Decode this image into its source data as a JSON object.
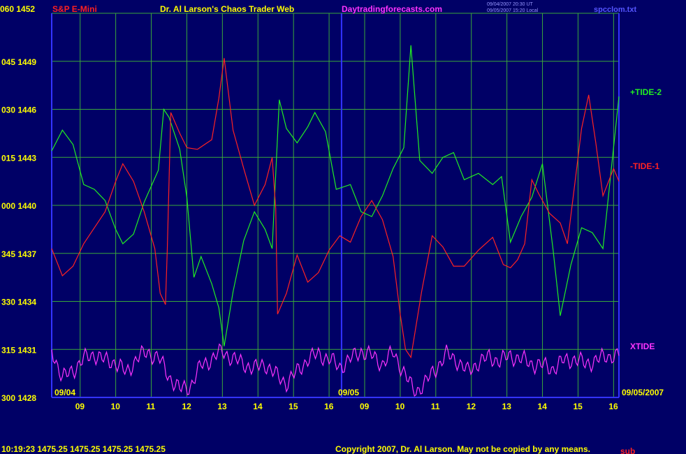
{
  "header": {
    "symbol": "S&P E-Mini",
    "title": "Dr. Al Larson's Chaos Trader Web",
    "site": "Daytradingforecasts.com",
    "meta_line1": "09/04/2007 20:30 UT",
    "meta_line2": "09/05/2007 15:20 Local",
    "file": "spcclom.txt"
  },
  "footer": {
    "quote": "10:19:23  1475.25 1475.25 1475.25 1475.25",
    "copyright": "Copyright 2007, Dr. Al Larson. May not be copied by any means.",
    "overlap": "sub"
  },
  "date_labels": {
    "start1": "09/04",
    "start2": "09/05",
    "end": "09/05/2007"
  },
  "colors": {
    "background": "#000066",
    "grid": "#3aa83a",
    "axis": "#3333ff",
    "green": "#22ee22",
    "red": "#ff2222",
    "magenta": "#ff33ff",
    "label": "#ffff00"
  },
  "chart_data": {
    "type": "line",
    "title": "S&P E-Mini",
    "y_left_labels": [
      "060",
      "045",
      "030",
      "015",
      "000",
      "345",
      "330",
      "315",
      "300"
    ],
    "y_right_labels": [
      "1452",
      "1449",
      "1446",
      "1443",
      "1440",
      "1437",
      "1434",
      "1431",
      "1428"
    ],
    "ylim": [
      1428,
      1452
    ],
    "x_ticks": [
      "09",
      "10",
      "11",
      "12",
      "13",
      "14",
      "15",
      "16",
      "09",
      "10",
      "11",
      "12",
      "13",
      "14",
      "15",
      "16"
    ],
    "x_range": [
      8.2,
      24.15
    ],
    "grid": true,
    "series": [
      {
        "name": "+TIDE-2",
        "color": "#22ee22",
        "points": [
          [
            8.2,
            1443.4
          ],
          [
            8.5,
            1444.7
          ],
          [
            8.8,
            1443.8
          ],
          [
            9.1,
            1441.3
          ],
          [
            9.4,
            1441
          ],
          [
            9.7,
            1440.3
          ],
          [
            10,
            1438.5
          ],
          [
            10.2,
            1437.6
          ],
          [
            10.5,
            1438.2
          ],
          [
            10.8,
            1440.2
          ],
          [
            11.2,
            1442.2
          ],
          [
            11.35,
            1446
          ],
          [
            11.5,
            1445.5
          ],
          [
            11.8,
            1443.5
          ],
          [
            12.0,
            1440.5
          ],
          [
            12.2,
            1435.5
          ],
          [
            12.4,
            1436.8
          ],
          [
            12.7,
            1435.1
          ],
          [
            12.9,
            1433.6
          ],
          [
            13.05,
            1431.2
          ],
          [
            13.3,
            1434.6
          ],
          [
            13.6,
            1437.8
          ],
          [
            13.9,
            1439.6
          ],
          [
            14.2,
            1438.5
          ],
          [
            14.4,
            1437.3
          ],
          [
            14.6,
            1446.6
          ],
          [
            14.8,
            1444.8
          ],
          [
            15.1,
            1443.9
          ],
          [
            15.4,
            1444.9
          ],
          [
            15.6,
            1445.8
          ],
          [
            15.9,
            1444.6
          ],
          [
            16.2,
            1441
          ],
          [
            16.6,
            1441.3
          ],
          [
            16.9,
            1439.6
          ],
          [
            17.2,
            1439.3
          ],
          [
            17.5,
            1440.6
          ],
          [
            17.8,
            1442.3
          ],
          [
            18.1,
            1443.6
          ],
          [
            18.3,
            1450
          ],
          [
            18.55,
            1442.8
          ],
          [
            18.9,
            1442
          ],
          [
            19.2,
            1443
          ],
          [
            19.5,
            1443.3
          ],
          [
            19.8,
            1441.6
          ],
          [
            20.2,
            1442
          ],
          [
            20.6,
            1441.3
          ],
          [
            20.85,
            1441.8
          ],
          [
            21.1,
            1437.7
          ],
          [
            21.4,
            1439.3
          ],
          [
            21.7,
            1440.5
          ],
          [
            22.0,
            1442.6
          ],
          [
            22.3,
            1437.2
          ],
          [
            22.5,
            1433.1
          ],
          [
            22.8,
            1436.3
          ],
          [
            23.1,
            1438.6
          ],
          [
            23.4,
            1438.3
          ],
          [
            23.7,
            1437.3
          ],
          [
            24.15,
            1446.8
          ]
        ]
      },
      {
        "name": "-TIDE-1",
        "color": "#ff2222",
        "points": [
          [
            8.2,
            1437.3
          ],
          [
            8.5,
            1435.6
          ],
          [
            8.8,
            1436.2
          ],
          [
            9.1,
            1437.6
          ],
          [
            9.4,
            1438.6
          ],
          [
            9.7,
            1439.6
          ],
          [
            10,
            1441.5
          ],
          [
            10.2,
            1442.6
          ],
          [
            10.5,
            1441.5
          ],
          [
            10.8,
            1439.6
          ],
          [
            11.1,
            1437.3
          ],
          [
            11.25,
            1434.5
          ],
          [
            11.4,
            1433.8
          ],
          [
            11.45,
            1437.3
          ],
          [
            11.55,
            1445.8
          ],
          [
            11.8,
            1444.5
          ],
          [
            12.0,
            1443.6
          ],
          [
            12.3,
            1443.5
          ],
          [
            12.7,
            1444.1
          ],
          [
            12.9,
            1446.7
          ],
          [
            13.05,
            1449.2
          ],
          [
            13.3,
            1444.7
          ],
          [
            13.6,
            1442.3
          ],
          [
            13.9,
            1440
          ],
          [
            14.2,
            1441.3
          ],
          [
            14.4,
            1443
          ],
          [
            14.5,
            1439.8
          ],
          [
            14.55,
            1433.2
          ],
          [
            14.8,
            1434.5
          ],
          [
            15.1,
            1436.9
          ],
          [
            15.4,
            1435.2
          ],
          [
            15.7,
            1435.8
          ],
          [
            16.0,
            1437.2
          ],
          [
            16.3,
            1438.1
          ],
          [
            16.6,
            1437.7
          ],
          [
            16.9,
            1439.3
          ],
          [
            17.2,
            1440.3
          ],
          [
            17.5,
            1439.1
          ],
          [
            17.8,
            1436.8
          ],
          [
            18.0,
            1433.2
          ],
          [
            18.15,
            1431
          ],
          [
            18.3,
            1430.5
          ],
          [
            18.6,
            1434.6
          ],
          [
            18.9,
            1438.1
          ],
          [
            19.2,
            1437.4
          ],
          [
            19.5,
            1436.2
          ],
          [
            19.8,
            1436.2
          ],
          [
            20.2,
            1437.2
          ],
          [
            20.6,
            1438
          ],
          [
            20.9,
            1436.3
          ],
          [
            21.1,
            1436.1
          ],
          [
            21.3,
            1436.6
          ],
          [
            21.5,
            1437.6
          ],
          [
            21.7,
            1441.6
          ],
          [
            21.9,
            1440.7
          ],
          [
            22.2,
            1439.5
          ],
          [
            22.5,
            1438.9
          ],
          [
            22.7,
            1437.6
          ],
          [
            22.9,
            1441.2
          ],
          [
            23.1,
            1444.8
          ],
          [
            23.3,
            1446.9
          ],
          [
            23.5,
            1443.9
          ],
          [
            23.7,
            1440.6
          ],
          [
            24.0,
            1442.3
          ],
          [
            24.15,
            1441.5
          ]
        ]
      },
      {
        "name": "XTIDE",
        "color": "#ff33ff",
        "base": 1429.6,
        "amp": 1.3,
        "points": [
          [
            8.2,
            1431
          ],
          [
            8.5,
            1429.2
          ],
          [
            8.8,
            1429.7
          ],
          [
            9.1,
            1430.4
          ],
          [
            9.4,
            1430.7
          ],
          [
            9.7,
            1430.3
          ],
          [
            10,
            1430.2
          ],
          [
            10.3,
            1429.5
          ],
          [
            10.6,
            1430.5
          ],
          [
            10.9,
            1430.8
          ],
          [
            11.2,
            1430.5
          ],
          [
            11.5,
            1429.3
          ],
          [
            11.8,
            1428.5
          ],
          [
            12.1,
            1428.7
          ],
          [
            12.4,
            1430
          ],
          [
            12.7,
            1430.4
          ],
          [
            13.0,
            1430.9
          ],
          [
            13.3,
            1430.4
          ],
          [
            13.6,
            1430.1
          ],
          [
            13.9,
            1429.8
          ],
          [
            14.2,
            1430.1
          ],
          [
            14.5,
            1429.4
          ],
          [
            14.8,
            1428.9
          ],
          [
            15.1,
            1429.6
          ],
          [
            15.4,
            1430.4
          ],
          [
            15.7,
            1430.7
          ],
          [
            16.0,
            1430.4
          ],
          [
            16.3,
            1429.9
          ],
          [
            16.6,
            1430.4
          ],
          [
            16.9,
            1430.9
          ],
          [
            17.2,
            1430.6
          ],
          [
            17.5,
            1430.1
          ],
          [
            17.8,
            1430.8
          ],
          [
            18.1,
            1429.6
          ],
          [
            18.4,
            1428.3
          ],
          [
            18.7,
            1428.9
          ],
          [
            19.0,
            1429.8
          ],
          [
            19.3,
            1430.7
          ],
          [
            19.6,
            1430.3
          ],
          [
            19.9,
            1429.6
          ],
          [
            20.2,
            1430.2
          ],
          [
            20.5,
            1430.5
          ],
          [
            20.8,
            1430.3
          ],
          [
            21.1,
            1430.6
          ],
          [
            21.4,
            1430.4
          ],
          [
            21.7,
            1430.1
          ],
          [
            22.0,
            1430
          ],
          [
            22.3,
            1429.8
          ],
          [
            22.6,
            1430.3
          ],
          [
            22.9,
            1430.4
          ],
          [
            23.2,
            1430.1
          ],
          [
            23.5,
            1430.3
          ],
          [
            23.8,
            1430.6
          ],
          [
            24.15,
            1430.6
          ]
        ]
      }
    ]
  }
}
